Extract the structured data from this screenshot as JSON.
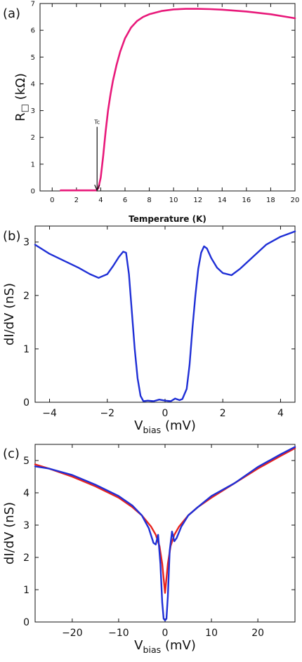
{
  "chart_data": [
    {
      "type": "line",
      "panel_label": "(a)",
      "xlabel": "Temperature (K)",
      "ylabel_main": "R",
      "ylabel_sub": "□",
      "ylabel_unit": " (kΩ)",
      "xlim": [
        -1,
        20
      ],
      "ylim": [
        0,
        7
      ],
      "xticks": [
        0,
        2,
        4,
        6,
        8,
        10,
        12,
        14,
        16,
        18,
        20
      ],
      "yticks": [
        0,
        1,
        2,
        3,
        4,
        5,
        6,
        7
      ],
      "annotation": {
        "text": "Tc",
        "x": 3.7,
        "y_text": 2.5,
        "y_tip": 0.02
      },
      "series": [
        {
          "color": "#e8197a",
          "x": [
            0.7,
            2.0,
            3.0,
            3.6,
            3.8,
            4.0,
            4.2,
            4.4,
            4.6,
            4.8,
            5.0,
            5.3,
            5.6,
            6.0,
            6.5,
            7.0,
            7.5,
            8.0,
            9.0,
            10.0,
            11.0,
            12.0,
            13.0,
            14.0,
            16.0,
            18.0,
            20.0
          ],
          "y": [
            0.02,
            0.02,
            0.02,
            0.02,
            0.1,
            0.5,
            1.3,
            2.2,
            3.0,
            3.6,
            4.1,
            4.7,
            5.2,
            5.7,
            6.1,
            6.35,
            6.5,
            6.6,
            6.72,
            6.78,
            6.8,
            6.8,
            6.79,
            6.77,
            6.7,
            6.6,
            6.45
          ]
        }
      ]
    },
    {
      "type": "line",
      "panel_label": "(b)",
      "xlabel_main": "V",
      "xlabel_sub": "bias",
      "xlabel_unit": " (mV)",
      "ylabel": "dI/dV (nS)",
      "xlim": [
        -4.5,
        4.5
      ],
      "ylim": [
        0,
        3.3
      ],
      "xticks": [
        -4,
        -2,
        0,
        2,
        4
      ],
      "yticks": [
        0,
        1,
        2,
        3
      ],
      "series": [
        {
          "color": "#1f2fd6",
          "x": [
            -4.5,
            -4.0,
            -3.5,
            -3.0,
            -2.6,
            -2.3,
            -2.0,
            -1.8,
            -1.6,
            -1.45,
            -1.35,
            -1.25,
            -1.15,
            -1.05,
            -0.95,
            -0.85,
            -0.75,
            -0.6,
            -0.4,
            -0.2,
            0.0,
            0.2,
            0.35,
            0.5,
            0.6,
            0.75,
            0.85,
            0.95,
            1.05,
            1.15,
            1.25,
            1.35,
            1.45,
            1.6,
            1.8,
            2.0,
            2.3,
            2.6,
            3.0,
            3.5,
            4.0,
            4.5
          ],
          "y": [
            2.95,
            2.78,
            2.65,
            2.52,
            2.4,
            2.33,
            2.4,
            2.55,
            2.72,
            2.82,
            2.8,
            2.4,
            1.7,
            1.0,
            0.45,
            0.12,
            0.02,
            0.03,
            0.02,
            0.05,
            0.03,
            0.02,
            0.07,
            0.04,
            0.06,
            0.25,
            0.7,
            1.4,
            2.0,
            2.5,
            2.8,
            2.92,
            2.88,
            2.7,
            2.52,
            2.42,
            2.38,
            2.5,
            2.7,
            2.95,
            3.1,
            3.2
          ]
        }
      ]
    },
    {
      "type": "line",
      "panel_label": "(c)",
      "xlabel_main": "V",
      "xlabel_sub": "bias",
      "xlabel_unit": " (mV)",
      "ylabel": "dI/dV (nS)",
      "xlim": [
        -28,
        28
      ],
      "ylim": [
        0,
        5.5
      ],
      "xticks": [
        -20,
        -10,
        0,
        10,
        20
      ],
      "yticks": [
        0,
        1,
        2,
        3,
        4,
        5
      ],
      "series": [
        {
          "color": "#e8241e",
          "x": [
            -28,
            -25,
            -20,
            -15,
            -10,
            -7,
            -5,
            -3,
            -2,
            -1.2,
            -0.6,
            0.0,
            0.6,
            1.2,
            2,
            3,
            5,
            7,
            10,
            15,
            20,
            25,
            28
          ],
          "y": [
            4.88,
            4.75,
            4.5,
            4.2,
            3.85,
            3.55,
            3.3,
            2.95,
            2.7,
            2.35,
            1.8,
            0.9,
            1.8,
            2.35,
            2.7,
            2.95,
            3.3,
            3.55,
            3.85,
            4.3,
            4.75,
            5.15,
            5.38
          ]
        },
        {
          "color": "#1f2fd6",
          "x": [
            -28,
            -25,
            -20,
            -15,
            -10,
            -7,
            -5,
            -3.5,
            -2.5,
            -2.0,
            -1.5,
            -1.0,
            -0.6,
            -0.3,
            0.0,
            0.3,
            0.6,
            1.0,
            1.5,
            2.0,
            2.5,
            3.5,
            5,
            7,
            10,
            15,
            20,
            25,
            28
          ],
          "y": [
            4.82,
            4.75,
            4.55,
            4.25,
            3.9,
            3.6,
            3.3,
            2.9,
            2.45,
            2.4,
            2.7,
            1.8,
            0.6,
            0.1,
            0.05,
            0.1,
            0.8,
            2.2,
            2.8,
            2.5,
            2.6,
            2.95,
            3.3,
            3.55,
            3.9,
            4.3,
            4.8,
            5.2,
            5.42
          ]
        }
      ]
    }
  ]
}
